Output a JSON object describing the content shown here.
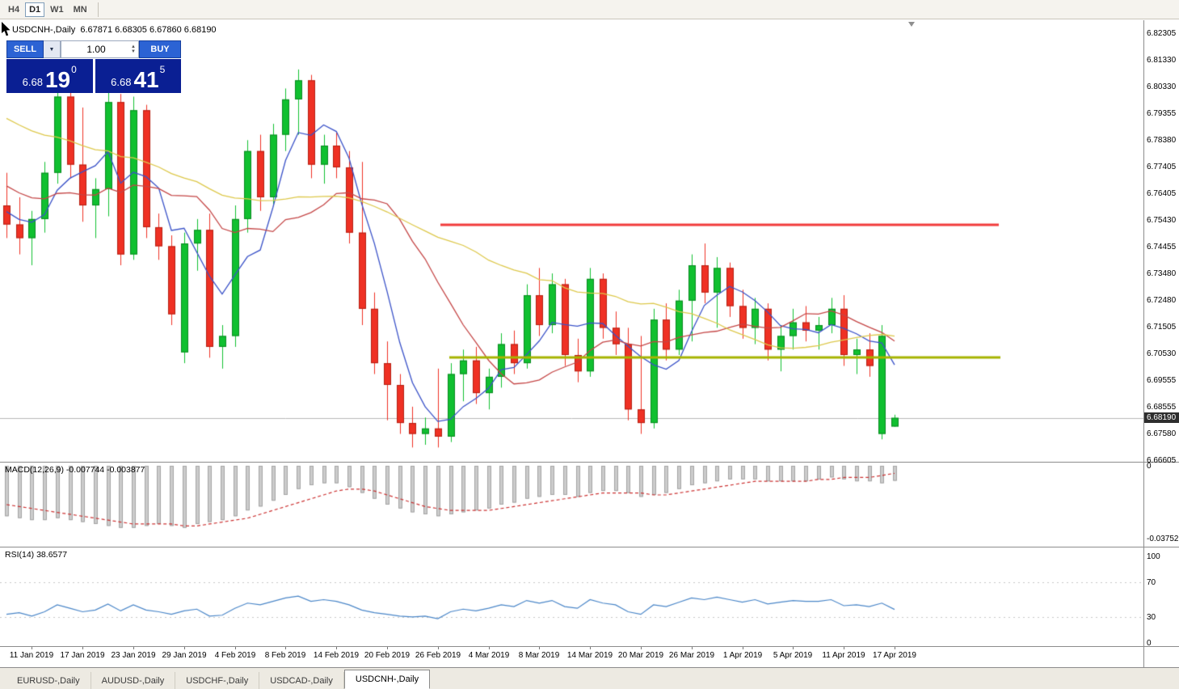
{
  "toolbar": {
    "timeframes": [
      {
        "label": "H4",
        "active": false
      },
      {
        "label": "D1",
        "active": true
      },
      {
        "label": "W1",
        "active": false
      },
      {
        "label": "MN",
        "active": false
      }
    ]
  },
  "chart": {
    "symbol_info": "USDCNH-,Daily  6.67871 6.68305 6.67860 6.68190",
    "current_price": "6.68190",
    "trade_panel": {
      "sell_label": "SELL",
      "buy_label": "BUY",
      "volume": "1.00",
      "sell_price": {
        "base": "6.68",
        "big": "19",
        "sup": "0"
      },
      "buy_price": {
        "base": "6.68",
        "big": "41",
        "sup": "5"
      }
    },
    "price_labels": [
      "6.82305",
      "6.81330",
      "6.80330",
      "6.79355",
      "6.78380",
      "6.77405",
      "6.76405",
      "6.75430",
      "6.74455",
      "6.73480",
      "6.72480",
      "6.71505",
      "6.70530",
      "6.69555",
      "6.68555",
      "6.67580",
      "6.66605"
    ]
  },
  "macd_panel": {
    "label": "MACD(12,26,9) -0.007744 -0.003877",
    "scale": [
      "0",
      "-0.03752"
    ]
  },
  "rsi_panel": {
    "label": "RSI(14) 38.6577",
    "scale": [
      "100",
      "70",
      "30",
      "0"
    ]
  },
  "tabs": [
    {
      "label": "EURUSD-,Daily",
      "active": false
    },
    {
      "label": "AUDUSD-,Daily",
      "active": false
    },
    {
      "label": "USDCHF-,Daily",
      "active": false
    },
    {
      "label": "USDCAD-,Daily",
      "active": false
    },
    {
      "label": "USDCNH-,Daily",
      "active": true
    }
  ],
  "chart_data": {
    "type": "candlestick",
    "title": "USDCNH-,Daily",
    "ylim": [
      6.66605,
      6.82305
    ],
    "last_price": 6.6819,
    "colors": {
      "up": "#10c030",
      "up_border": "#0a8a20",
      "down": "#ef3124",
      "down_border": "#b52013",
      "last_price_line": "#b8b8b8"
    },
    "candles_ohlc": [
      [
        6.76,
        6.772,
        6.748,
        6.753
      ],
      [
        6.753,
        6.763,
        6.742,
        6.748
      ],
      [
        6.748,
        6.758,
        6.738,
        6.755
      ],
      [
        6.755,
        6.776,
        6.75,
        6.772
      ],
      [
        6.772,
        6.806,
        6.768,
        6.8
      ],
      [
        6.8,
        6.807,
        6.77,
        6.775
      ],
      [
        6.775,
        6.796,
        6.754,
        6.76
      ],
      [
        6.76,
        6.77,
        6.748,
        6.766
      ],
      [
        6.766,
        6.802,
        6.756,
        6.798
      ],
      [
        6.798,
        6.801,
        6.738,
        6.742
      ],
      [
        6.742,
        6.8,
        6.74,
        6.795
      ],
      [
        6.795,
        6.797,
        6.748,
        6.752
      ],
      [
        6.752,
        6.757,
        6.74,
        6.745
      ],
      [
        6.745,
        6.749,
        6.716,
        6.72
      ],
      [
        6.706,
        6.75,
        6.702,
        6.746
      ],
      [
        6.746,
        6.755,
        6.736,
        6.751
      ],
      [
        6.751,
        6.757,
        6.704,
        6.708
      ],
      [
        6.708,
        6.716,
        6.7,
        6.712
      ],
      [
        6.712,
        6.76,
        6.708,
        6.755
      ],
      [
        6.755,
        6.784,
        6.75,
        6.78
      ],
      [
        6.78,
        6.786,
        6.758,
        6.763
      ],
      [
        6.763,
        6.79,
        6.76,
        6.786
      ],
      [
        6.786,
        6.803,
        6.78,
        6.799
      ],
      [
        6.799,
        6.81,
        6.786,
        6.806
      ],
      [
        6.806,
        6.808,
        6.77,
        6.775
      ],
      [
        6.775,
        6.786,
        6.768,
        6.782
      ],
      [
        6.782,
        6.787,
        6.77,
        6.774
      ],
      [
        6.774,
        6.78,
        6.746,
        6.75
      ],
      [
        6.75,
        6.776,
        6.716,
        6.722
      ],
      [
        6.722,
        6.728,
        6.698,
        6.702
      ],
      [
        6.702,
        6.71,
        6.681,
        6.694
      ],
      [
        6.694,
        6.698,
        6.676,
        6.68
      ],
      [
        6.68,
        6.686,
        6.671,
        6.676
      ],
      [
        6.676,
        6.682,
        6.672,
        6.678
      ],
      [
        6.678,
        6.7,
        6.671,
        6.675
      ],
      [
        6.675,
        6.702,
        6.673,
        6.698
      ],
      [
        6.698,
        6.707,
        6.688,
        6.703
      ],
      [
        6.703,
        6.708,
        6.687,
        6.691
      ],
      [
        6.691,
        6.7,
        6.685,
        6.697
      ],
      [
        6.697,
        6.713,
        6.693,
        6.709
      ],
      [
        6.709,
        6.714,
        6.698,
        6.702
      ],
      [
        6.702,
        6.731,
        6.7,
        6.727
      ],
      [
        6.727,
        6.737,
        6.712,
        6.716
      ],
      [
        6.716,
        6.735,
        6.713,
        6.731
      ],
      [
        6.731,
        6.733,
        6.701,
        6.705
      ],
      [
        6.705,
        6.711,
        6.695,
        6.699
      ],
      [
        6.699,
        6.737,
        6.697,
        6.733
      ],
      [
        6.733,
        6.735,
        6.711,
        6.715
      ],
      [
        6.715,
        6.721,
        6.705,
        6.709
      ],
      [
        6.709,
        6.715,
        6.681,
        6.685
      ],
      [
        6.685,
        6.712,
        6.676,
        6.68
      ],
      [
        6.68,
        6.722,
        6.678,
        6.718
      ],
      [
        6.718,
        6.724,
        6.703,
        6.707
      ],
      [
        6.707,
        6.729,
        6.705,
        6.725
      ],
      [
        6.725,
        6.742,
        6.71,
        6.738
      ],
      [
        6.738,
        6.746,
        6.724,
        6.728
      ],
      [
        6.728,
        6.741,
        6.715,
        6.737
      ],
      [
        6.737,
        6.739,
        6.719,
        6.723
      ],
      [
        6.723,
        6.729,
        6.711,
        6.715
      ],
      [
        6.715,
        6.726,
        6.709,
        6.722
      ],
      [
        6.722,
        6.724,
        6.703,
        6.707
      ],
      [
        6.707,
        6.716,
        6.699,
        6.712
      ],
      [
        6.712,
        6.722,
        6.707,
        6.717
      ],
      [
        6.717,
        6.723,
        6.71,
        6.714
      ],
      [
        6.714,
        6.719,
        6.707,
        6.716
      ],
      [
        6.716,
        6.726,
        6.713,
        6.722
      ],
      [
        6.722,
        6.727,
        6.701,
        6.705
      ],
      [
        6.705,
        6.711,
        6.698,
        6.707
      ],
      [
        6.707,
        6.713,
        6.697,
        6.701
      ],
      [
        6.676,
        6.716,
        6.674,
        6.712
      ],
      [
        6.67871,
        6.68305,
        6.6786,
        6.6819
      ]
    ],
    "date_labels": [
      "11 Jan 2019",
      "17 Jan 2019",
      "23 Jan 2019",
      "29 Jan 2019",
      "4 Feb 2019",
      "8 Feb 2019",
      "14 Feb 2019",
      "20 Feb 2019",
      "26 Feb 2019",
      "4 Mar 2019",
      "8 Mar 2019",
      "14 Mar 2019",
      "20 Mar 2019",
      "26 Mar 2019",
      "1 Apr 2019",
      "5 Apr 2019",
      "11 Apr 2019",
      "17 Apr 2019"
    ],
    "date_label_indices": [
      2,
      6,
      10,
      14,
      18,
      22,
      26,
      30,
      34,
      38,
      42,
      46,
      50,
      54,
      58,
      62,
      66,
      70
    ],
    "moving_averages": [
      {
        "name": "ma-fast",
        "period": 5,
        "color": "#3a52c8"
      },
      {
        "name": "ma-mid",
        "period": 13,
        "color": "#c44545"
      },
      {
        "name": "ma-slow",
        "period": 34,
        "color": "#ddc84b"
      }
    ],
    "ma_history_seed": {
      "start_price": 6.85,
      "bars": 40
    },
    "hlines": [
      {
        "name": "resistance-line",
        "price": 6.753,
        "color": "#f23b3b",
        "x_from": 545,
        "x_to": 1236,
        "width": 3
      },
      {
        "name": "support-line",
        "price": 6.704,
        "color": "#a6b400",
        "x_from": 556,
        "x_to": 1238,
        "width": 3
      }
    ],
    "macd": {
      "ylim": [
        0,
        -0.03752
      ],
      "hist_color": "#cccccc",
      "hist_border": "#a4a4a4",
      "signal_color": "#cc3333",
      "values": [
        -0.026,
        -0.027,
        -0.028,
        -0.028,
        -0.027,
        -0.028,
        -0.029,
        -0.03,
        -0.031,
        -0.032,
        -0.032,
        -0.031,
        -0.03,
        -0.031,
        -0.032,
        -0.03,
        -0.029,
        -0.028,
        -0.026,
        -0.023,
        -0.021,
        -0.018,
        -0.015,
        -0.012,
        -0.01,
        -0.009,
        -0.009,
        -0.011,
        -0.014,
        -0.017,
        -0.02,
        -0.022,
        -0.024,
        -0.025,
        -0.026,
        -0.025,
        -0.024,
        -0.023,
        -0.022,
        -0.02,
        -0.019,
        -0.017,
        -0.016,
        -0.015,
        -0.015,
        -0.016,
        -0.014,
        -0.013,
        -0.013,
        -0.014,
        -0.016,
        -0.015,
        -0.014,
        -0.012,
        -0.01,
        -0.009,
        -0.008,
        -0.007,
        -0.007,
        -0.007,
        -0.008,
        -0.008,
        -0.008,
        -0.008,
        -0.007,
        -0.006,
        -0.007,
        -0.008,
        -0.008,
        -0.009,
        -0.007744
      ],
      "signal": [
        -0.02,
        -0.021,
        -0.022,
        -0.023,
        -0.024,
        -0.025,
        -0.026,
        -0.027,
        -0.028,
        -0.029,
        -0.03,
        -0.03,
        -0.03,
        -0.03,
        -0.031,
        -0.031,
        -0.03,
        -0.029,
        -0.028,
        -0.027,
        -0.025,
        -0.023,
        -0.021,
        -0.019,
        -0.017,
        -0.015,
        -0.013,
        -0.012,
        -0.012,
        -0.013,
        -0.015,
        -0.017,
        -0.019,
        -0.021,
        -0.022,
        -0.023,
        -0.023,
        -0.023,
        -0.023,
        -0.022,
        -0.021,
        -0.02,
        -0.019,
        -0.018,
        -0.017,
        -0.016,
        -0.015,
        -0.014,
        -0.014,
        -0.014,
        -0.014,
        -0.015,
        -0.015,
        -0.014,
        -0.013,
        -0.012,
        -0.011,
        -0.01,
        -0.009,
        -0.008,
        -0.008,
        -0.008,
        -0.008,
        -0.008,
        -0.007,
        -0.007,
        -0.006,
        -0.006,
        -0.006,
        -0.005,
        -0.003877
      ]
    },
    "rsi": {
      "color": "#4a86c8",
      "levels": [
        70,
        30
      ],
      "values": [
        33,
        35,
        31,
        36,
        44,
        40,
        36,
        38,
        45,
        37,
        44,
        38,
        36,
        33,
        37,
        39,
        31,
        32,
        40,
        46,
        44,
        48,
        52,
        54,
        48,
        50,
        48,
        44,
        38,
        35,
        33,
        31,
        30,
        31,
        28,
        36,
        39,
        37,
        40,
        44,
        42,
        49,
        46,
        49,
        42,
        40,
        50,
        46,
        44,
        36,
        33,
        44,
        42,
        47,
        52,
        50,
        53,
        50,
        47,
        50,
        45,
        47,
        49,
        48,
        48,
        50,
        43,
        44,
        42,
        46,
        38.66
      ]
    }
  }
}
